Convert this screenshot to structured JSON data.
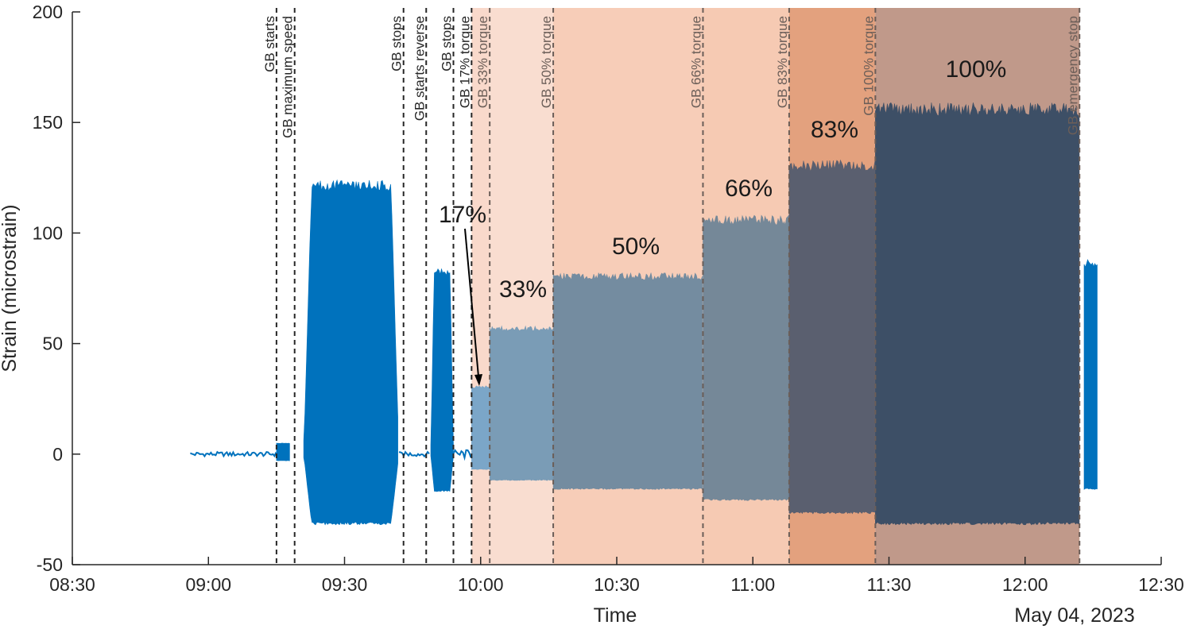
{
  "chart_data": {
    "type": "area",
    "title": "",
    "xlabel": "Time",
    "ylabel": "Strain (microstrain)",
    "date_label": "May 04, 2023",
    "xlim": [
      "08:30",
      "12:30"
    ],
    "ylim": [
      -50,
      200
    ],
    "x_ticks": [
      "08:30",
      "09:00",
      "09:30",
      "10:00",
      "10:30",
      "11:00",
      "11:30",
      "12:00",
      "12:30"
    ],
    "y_ticks": [
      -50,
      0,
      50,
      100,
      150,
      200
    ],
    "grid": false,
    "line_color": "#0072BD",
    "events": [
      {
        "time": "09:15",
        "label": "GB starts"
      },
      {
        "time": "09:19",
        "label": "GB maximum speed"
      },
      {
        "time": "09:43",
        "label": "GB stops"
      },
      {
        "time": "09:48",
        "label": "GB starts reverse"
      },
      {
        "time": "09:54",
        "label": "GB stops"
      },
      {
        "time": "09:58",
        "label": "GB 17% torque"
      },
      {
        "time": "10:02",
        "label": "GB 33% torque"
      },
      {
        "time": "10:16",
        "label": "GB 50% torque"
      },
      {
        "time": "10:49",
        "label": "GB 66% torque"
      },
      {
        "time": "11:08",
        "label": "GB 83% torque"
      },
      {
        "time": "11:27",
        "label": "GB 100% torque"
      },
      {
        "time": "12:12",
        "label": "GB emergency stop"
      }
    ],
    "torque_regions": [
      {
        "label": "17%",
        "start": "09:58",
        "end": "10:02",
        "color": "#f9d9cb"
      },
      {
        "label": "33%",
        "start": "10:02",
        "end": "10:16",
        "color": "#f9ddd0"
      },
      {
        "label": "50%",
        "start": "10:16",
        "end": "10:49",
        "color": "#f7cdb8"
      },
      {
        "label": "66%",
        "start": "10:49",
        "end": "11:08",
        "color": "#f6cab3"
      },
      {
        "label": "83%",
        "start": "11:08",
        "end": "11:27",
        "color": "#e3a17e"
      },
      {
        "label": "100%",
        "start": "11:27",
        "end": "12:12",
        "color": "#c0998a"
      }
    ],
    "series": [
      {
        "segments": [
          {
            "start": "08:56",
            "end": "09:15",
            "max": 1,
            "min": -1,
            "color": "#0072BD"
          },
          {
            "start": "09:15",
            "end": "09:18",
            "max": 5,
            "min": -3,
            "color": "#0072BD"
          },
          {
            "start": "09:21",
            "end": "09:42",
            "max": 124,
            "min": -32,
            "color": "#0072BD"
          },
          {
            "start": "09:42",
            "end": "09:49",
            "max": 1,
            "min": -1,
            "color": "#0072BD"
          },
          {
            "start": "09:49",
            "end": "09:54",
            "max": 84,
            "min": -17,
            "color": "#0072BD"
          },
          {
            "start": "09:54",
            "end": "09:58",
            "max": 2,
            "min": -2,
            "color": "#0072BD"
          },
          {
            "start": "09:58",
            "end": "10:02",
            "max": 31,
            "min": -7,
            "color": "#7ba6c8"
          },
          {
            "start": "10:02",
            "end": "10:16",
            "max": 58,
            "min": -12,
            "color": "#7a9cb6"
          },
          {
            "start": "10:16",
            "end": "10:49",
            "max": 82,
            "min": -16,
            "color": "#748ca0"
          },
          {
            "start": "10:49",
            "end": "11:08",
            "max": 108,
            "min": -21,
            "color": "#758898"
          },
          {
            "start": "11:08",
            "end": "11:27",
            "max": 133,
            "min": -27,
            "color": "#5a5f6f"
          },
          {
            "start": "11:27",
            "end": "12:12",
            "max": 159,
            "min": -32,
            "color": "#3d4f66"
          },
          {
            "start": "12:13",
            "end": "12:16",
            "max": 88,
            "min": -16,
            "color": "#0072BD"
          }
        ]
      }
    ]
  }
}
